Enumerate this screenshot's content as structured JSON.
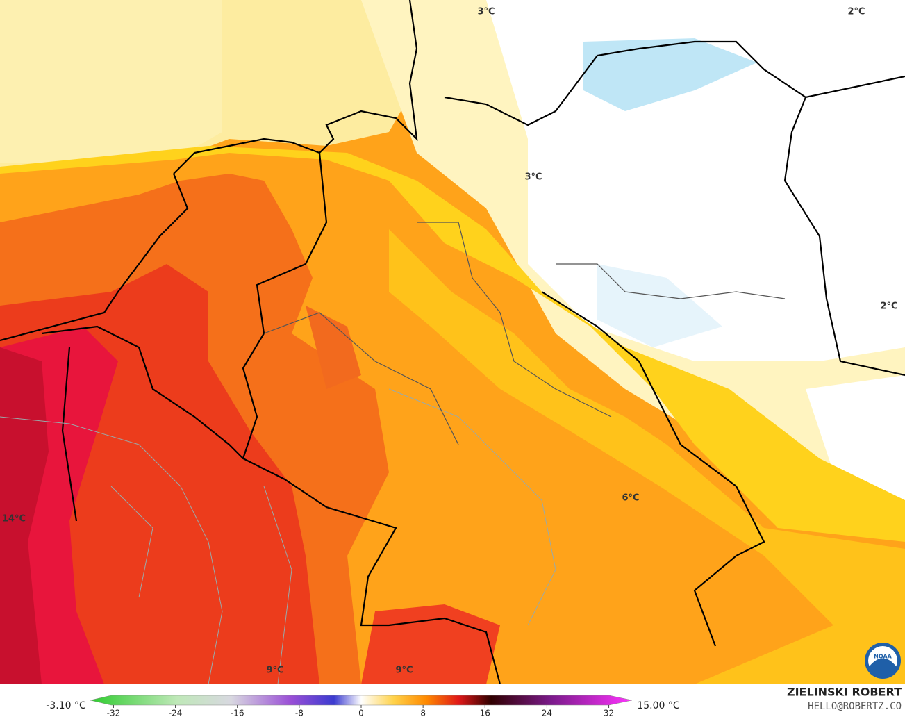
{
  "map": {
    "labels": [
      "3°C",
      "2°C",
      "3°C",
      "2°C",
      "14°C",
      "6°C",
      "9°C",
      "9°C"
    ],
    "legend": {
      "min_label": "-3.10 °C",
      "max_label": "15.00 °C",
      "lim": [
        -35,
        35
      ],
      "ticks": [
        -32,
        -24,
        -16,
        -8,
        0,
        8,
        16,
        24,
        32
      ]
    },
    "credit": {
      "name": "ZIELINSKI ROBERT",
      "contact": "HELLO@ROBERTZ.CO",
      "logo": "NOAA"
    }
  }
}
